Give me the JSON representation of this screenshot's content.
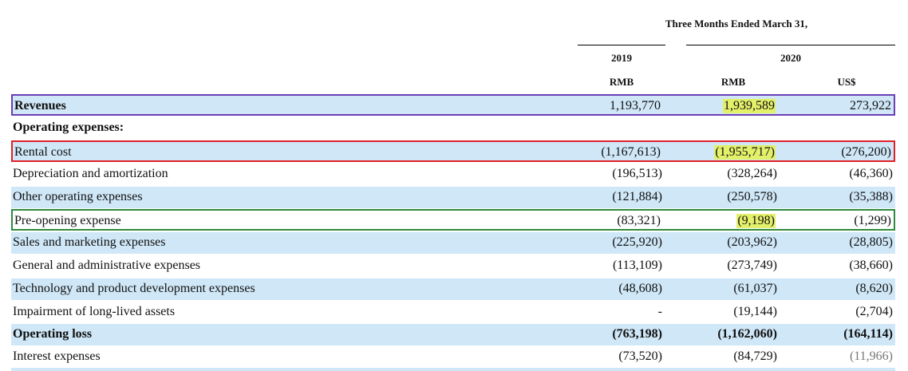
{
  "header": {
    "period": "Three Months Ended March 31,",
    "year_2019": "2019",
    "year_2020": "2020",
    "currency_rmb_2019": "RMB",
    "currency_rmb_2020": "RMB",
    "currency_usd_2020": "US$"
  },
  "rows": [
    {
      "label": "Revenues",
      "rmb_2019": "1,193,770",
      "rmb_2020": "1,939,589",
      "usd_2020": "273,922"
    },
    {
      "label": "Operating expenses:"
    },
    {
      "label": "Rental cost",
      "rmb_2019": "(1,167,613)",
      "rmb_2020": "(1,955,717)",
      "usd_2020": "(276,200)"
    },
    {
      "label": "Depreciation and amortization",
      "rmb_2019": "(196,513)",
      "rmb_2020": "(328,264)",
      "usd_2020": "(46,360)"
    },
    {
      "label": "Other operating expenses",
      "rmb_2019": "(121,884)",
      "rmb_2020": "(250,578)",
      "usd_2020": "(35,388)"
    },
    {
      "label": "Pre-opening expense",
      "rmb_2019": "(83,321)",
      "rmb_2020": "(9,198)",
      "usd_2020": "(1,299)"
    },
    {
      "label": "Sales and marketing expenses",
      "rmb_2019": "(225,920)",
      "rmb_2020": "(203,962)",
      "usd_2020": "(28,805)"
    },
    {
      "label": "General and administrative expenses",
      "rmb_2019": "(113,109)",
      "rmb_2020": "(273,749)",
      "usd_2020": "(38,660)"
    },
    {
      "label": "Technology and product development expenses",
      "rmb_2019": "(48,608)",
      "rmb_2020": "(61,037)",
      "usd_2020": "(8,620)"
    },
    {
      "label": "Impairment of long-lived assets",
      "rmb_2019": "-",
      "rmb_2020": "(19,144)",
      "usd_2020": "(2,704)"
    },
    {
      "label": "Operating loss",
      "rmb_2019": "(763,198)",
      "rmb_2020": "(1,162,060)",
      "usd_2020": "(164,114)"
    },
    {
      "label": "Interest expenses",
      "rmb_2019": "(73,520)",
      "rmb_2020": "(84,729)",
      "usd_2020": "(11,966)"
    }
  ],
  "colors": {
    "row_band": "#cfe7f7",
    "highlight": "#e3f06a",
    "box_purple": "#6a3fb5",
    "box_red": "#e0202a",
    "box_green": "#2e8b3e"
  }
}
